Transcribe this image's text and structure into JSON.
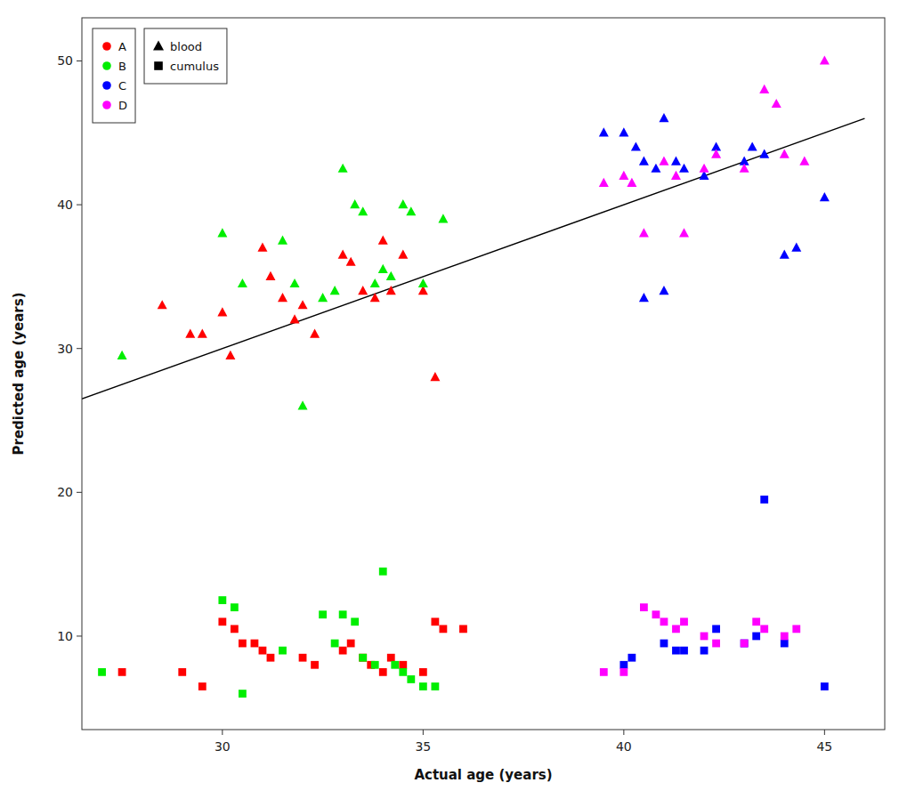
{
  "chart_data": {
    "type": "scatter",
    "xlabel": "Actual age (years)",
    "ylabel": "Predicted age (years)",
    "xlim": [
      26.5,
      46.5
    ],
    "ylim": [
      3.5,
      53
    ],
    "xticks": [
      30,
      35,
      40,
      45
    ],
    "yticks": [
      10,
      20,
      30,
      40,
      50
    ],
    "grid": false,
    "legend": "upper left",
    "reference_line": {
      "x": [
        25,
        46
      ],
      "y": [
        25,
        46
      ],
      "color": "#000000"
    },
    "series": [
      {
        "name": "blood",
        "marker": "triangle",
        "groups": [
          {
            "name": "A",
            "color": "#FF0000",
            "x": [
              28.5,
              29.2,
              29.5,
              30.0,
              30.2,
              31.0,
              31.2,
              31.5,
              31.8,
              32.0,
              32.3,
              33.0,
              33.2,
              33.5,
              33.8,
              34.0,
              34.2,
              34.5,
              35.0,
              35.3
            ],
            "values": [
              33.0,
              31.0,
              31.0,
              32.5,
              29.5,
              37.0,
              35.0,
              33.5,
              32.0,
              33.0,
              31.0,
              36.5,
              36.0,
              34.0,
              33.5,
              37.5,
              34.0,
              36.5,
              34.0,
              28.0
            ]
          },
          {
            "name": "B",
            "color": "#00EE00",
            "x": [
              27.5,
              30.0,
              30.5,
              31.5,
              31.8,
              32.5,
              32.8,
              33.0,
              33.3,
              33.5,
              33.8,
              34.0,
              34.2,
              34.5,
              34.7,
              35.0,
              35.5,
              32.0
            ],
            "values": [
              29.5,
              38.0,
              34.5,
              37.5,
              34.5,
              33.5,
              34.0,
              42.5,
              40.0,
              39.5,
              34.5,
              35.5,
              35.0,
              40.0,
              39.5,
              34.5,
              39.0,
              26.0
            ]
          },
          {
            "name": "C",
            "color": "#0000FF",
            "x": [
              39.5,
              40.0,
              40.3,
              40.5,
              40.8,
              41.0,
              41.3,
              41.5,
              42.0,
              42.3,
              43.0,
              43.2,
              43.5,
              44.0,
              44.3,
              45.0,
              40.5,
              41.0
            ],
            "values": [
              45.0,
              45.0,
              44.0,
              43.0,
              42.5,
              46.0,
              43.0,
              42.5,
              42.0,
              44.0,
              43.0,
              44.0,
              43.5,
              36.5,
              37.0,
              40.5,
              33.5,
              34.0
            ]
          },
          {
            "name": "D",
            "color": "#FF00FF",
            "x": [
              40.0,
              40.2,
              41.0,
              41.3,
              42.0,
              42.3,
              43.0,
              43.5,
              43.8,
              44.0,
              44.5,
              45.0,
              40.5,
              41.5,
              39.5
            ],
            "values": [
              42.0,
              41.5,
              43.0,
              42.0,
              42.5,
              43.5,
              42.5,
              48.0,
              47.0,
              43.5,
              43.0,
              50.0,
              38.0,
              38.0,
              41.5
            ]
          }
        ]
      },
      {
        "name": "cumulus",
        "marker": "square",
        "groups": [
          {
            "name": "A",
            "color": "#FF0000",
            "x": [
              27.5,
              29.0,
              29.5,
              30.0,
              30.3,
              30.5,
              30.8,
              31.0,
              31.2,
              32.0,
              32.3,
              33.0,
              33.2,
              33.5,
              33.7,
              34.0,
              34.2,
              34.5,
              35.0,
              35.3,
              35.5,
              36.0
            ],
            "values": [
              7.5,
              7.5,
              6.5,
              11.0,
              10.5,
              9.5,
              9.5,
              9.0,
              8.5,
              8.5,
              8.0,
              9.0,
              9.5,
              8.5,
              8.0,
              7.5,
              8.5,
              8.0,
              7.5,
              11.0,
              10.5,
              10.5
            ]
          },
          {
            "name": "B",
            "color": "#00EE00",
            "x": [
              27.0,
              30.0,
              30.3,
              30.5,
              31.5,
              32.5,
              32.8,
              33.0,
              33.3,
              33.5,
              33.8,
              34.0,
              34.3,
              34.5,
              34.7,
              35.0,
              35.3
            ],
            "values": [
              7.5,
              12.5,
              12.0,
              6.0,
              9.0,
              11.5,
              9.5,
              11.5,
              11.0,
              8.5,
              8.0,
              14.5,
              8.0,
              7.5,
              7.0,
              6.5,
              6.5
            ]
          },
          {
            "name": "C",
            "color": "#0000FF",
            "x": [
              40.0,
              40.2,
              41.0,
              41.3,
              41.5,
              42.0,
              42.3,
              43.0,
              43.3,
              44.0,
              45.0,
              43.5
            ],
            "values": [
              8.0,
              8.5,
              9.5,
              9.0,
              9.0,
              9.0,
              10.5,
              9.5,
              10.0,
              9.5,
              6.5,
              19.5
            ]
          },
          {
            "name": "D",
            "color": "#FF00FF",
            "x": [
              39.5,
              40.0,
              40.5,
              40.8,
              41.0,
              41.3,
              41.5,
              42.0,
              42.3,
              43.0,
              43.3,
              43.5,
              44.0,
              44.3
            ],
            "values": [
              7.5,
              7.5,
              12.0,
              11.5,
              11.0,
              10.5,
              11.0,
              10.0,
              9.5,
              9.5,
              11.0,
              10.5,
              10.0,
              10.5
            ]
          }
        ]
      }
    ]
  }
}
